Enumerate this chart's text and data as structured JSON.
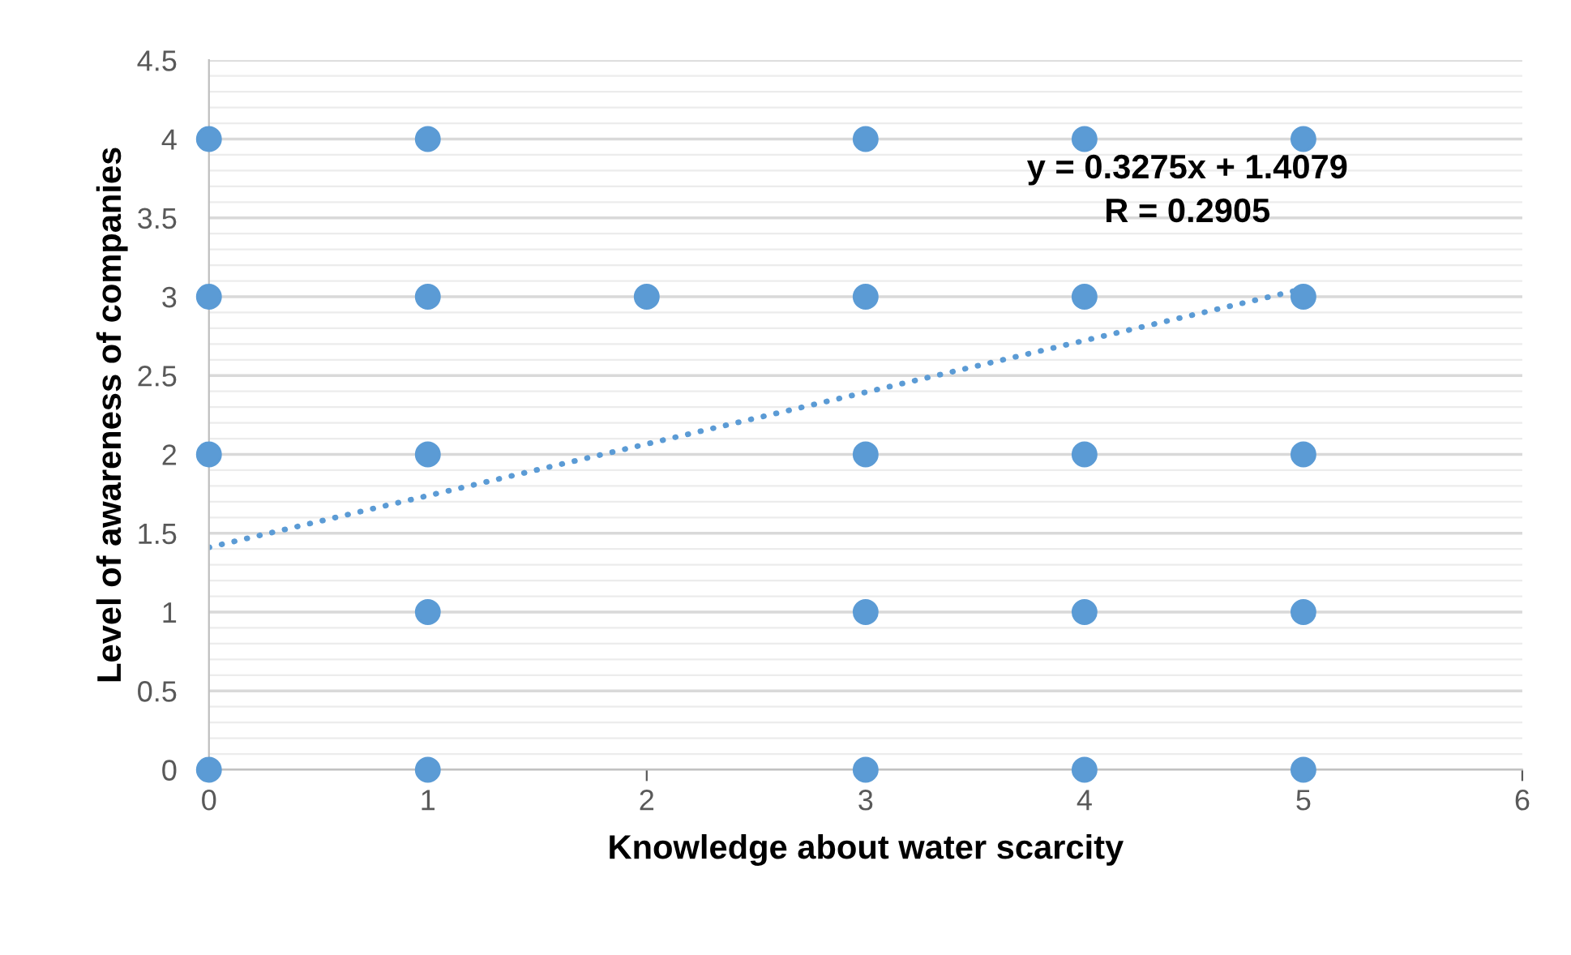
{
  "chart_data": {
    "type": "scatter",
    "xlabel": "Knowledge about water scarcity",
    "ylabel": "Level of awareness of companies",
    "series": [
      {
        "color": "#5b9bd5",
        "marker": "circle",
        "x": [
          0,
          0,
          0,
          0,
          1,
          1,
          1,
          1,
          1,
          2,
          3,
          3,
          3,
          3,
          3,
          4,
          4,
          4,
          4,
          4,
          5,
          5,
          5,
          5,
          5
        ],
        "values": [
          4,
          3,
          2,
          0,
          4,
          3,
          2,
          1,
          0,
          3,
          4,
          3,
          2,
          1,
          0,
          4,
          3,
          2,
          1,
          0,
          4,
          3,
          2,
          1,
          0
        ]
      },
      {
        "type": "line",
        "color": "#5b9bd5",
        "line_style": "dotted",
        "x": [
          0,
          5
        ],
        "values": [
          1.41,
          3.05
        ]
      }
    ],
    "annotations": [
      "y = 0.3275x + 1.4079",
      "R = 0.2905"
    ],
    "xlim": [
      0,
      6
    ],
    "xticks": [
      0,
      1,
      2,
      3,
      4,
      5,
      6
    ],
    "ylim": [
      0,
      4.5
    ],
    "yticks": [
      0,
      0.5,
      1,
      1.5,
      2,
      2.5,
      3,
      3.5,
      4,
      4.5
    ],
    "grid": "y"
  }
}
